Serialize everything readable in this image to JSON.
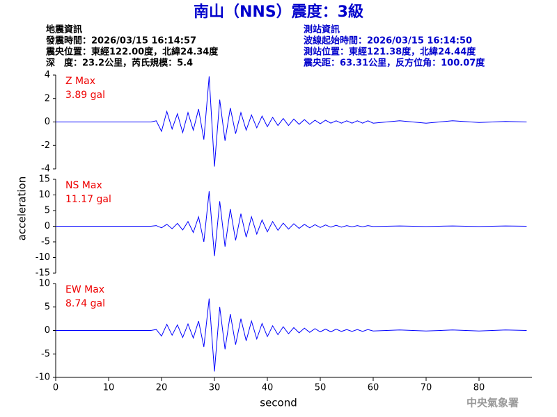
{
  "title": "南山（NNS）震度：3級",
  "event_info": [
    "地震資訊",
    "發震時間：2026/03/15 16:14:57",
    "震央位置：東經122.00度，北緯24.34度",
    "深　度：23.2公里，芮氏規模：5.4"
  ],
  "station_info": [
    "測站資訊",
    "波線起始時間：2026/03/15 16:14:50",
    "測站位置：東經121.38度，北緯24.44度",
    "震央距：63.31公里，反方位角：100.07度"
  ],
  "ylabel": "acceleration",
  "xlabel": "second",
  "footer": "中央氣象署",
  "chart_data": [
    {
      "type": "line",
      "annotation": [
        "Z Max",
        "3.89 gal"
      ],
      "color": "#0000ff",
      "x": [
        0,
        10,
        18,
        19,
        20,
        21,
        22,
        23,
        24,
        25,
        26,
        27,
        28,
        29,
        30,
        31,
        32,
        33,
        34,
        35,
        36,
        37,
        38,
        39,
        40,
        41,
        42,
        43,
        44,
        45,
        46,
        47,
        48,
        49,
        50,
        51,
        52,
        53,
        54,
        55,
        56,
        57,
        58,
        59,
        60,
        65,
        70,
        75,
        80,
        85,
        89
      ],
      "values": [
        0,
        0,
        0,
        0.1,
        -0.8,
        0.9,
        -0.6,
        0.7,
        -0.9,
        0.8,
        -0.7,
        1.1,
        -1.5,
        3.89,
        -3.8,
        1.9,
        -1.6,
        1.2,
        -1.0,
        0.8,
        -0.7,
        0.6,
        -0.5,
        0.5,
        -0.4,
        0.4,
        -0.3,
        0.3,
        -0.3,
        0.25,
        -0.2,
        0.2,
        -0.2,
        0.15,
        -0.15,
        0.15,
        -0.1,
        0.1,
        -0.1,
        0.1,
        -0.1,
        0.1,
        -0.1,
        0.1,
        -0.1,
        0.1,
        -0.1,
        0.1,
        -0.05,
        0.05,
        0
      ],
      "xlim": [
        0,
        90
      ],
      "ylim": [
        -4,
        4
      ],
      "yticks": [
        -4,
        -2,
        0,
        2,
        4
      ]
    },
    {
      "type": "line",
      "annotation": [
        "NS Max",
        "11.17 gal"
      ],
      "color": "#0000ff",
      "x": [
        0,
        10,
        18,
        19,
        20,
        21,
        22,
        23,
        24,
        25,
        26,
        27,
        28,
        29,
        30,
        31,
        32,
        33,
        34,
        35,
        36,
        37,
        38,
        39,
        40,
        41,
        42,
        43,
        44,
        45,
        46,
        47,
        48,
        49,
        50,
        51,
        52,
        53,
        54,
        55,
        56,
        57,
        58,
        59,
        60,
        65,
        70,
        75,
        80,
        85,
        89
      ],
      "values": [
        0,
        0,
        0,
        0.2,
        -0.5,
        0.6,
        -0.8,
        0.9,
        -1.2,
        1.5,
        -2.0,
        3.0,
        -5.0,
        11.17,
        -9.5,
        8.0,
        -6.5,
        5.5,
        -4.5,
        4.0,
        -3.5,
        3.0,
        -2.5,
        2.0,
        -1.8,
        1.5,
        -1.3,
        1.0,
        -0.9,
        0.8,
        -0.7,
        0.6,
        -0.5,
        0.5,
        -0.4,
        0.4,
        -0.3,
        0.3,
        -0.3,
        0.2,
        -0.2,
        0.2,
        -0.2,
        0.2,
        -0.1,
        0.1,
        -0.1,
        0.1,
        -0.1,
        0.1,
        0
      ],
      "xlim": [
        0,
        90
      ],
      "ylim": [
        -15,
        15
      ],
      "yticks": [
        -15,
        -10,
        -5,
        0,
        5,
        10,
        15
      ]
    },
    {
      "type": "line",
      "annotation": [
        "EW Max",
        "8.74 gal"
      ],
      "color": "#0000ff",
      "x": [
        0,
        10,
        18,
        19,
        20,
        21,
        22,
        23,
        24,
        25,
        26,
        27,
        28,
        29,
        30,
        31,
        32,
        33,
        34,
        35,
        36,
        37,
        38,
        39,
        40,
        41,
        42,
        43,
        44,
        45,
        46,
        47,
        48,
        49,
        50,
        51,
        52,
        53,
        54,
        55,
        56,
        57,
        58,
        59,
        60,
        65,
        70,
        75,
        80,
        85,
        89
      ],
      "values": [
        0,
        0,
        0,
        0.2,
        -1.2,
        1.3,
        -1.0,
        1.2,
        -1.5,
        1.4,
        -1.6,
        2.0,
        -3.5,
        6.8,
        -8.74,
        5.0,
        -4.0,
        3.5,
        -3.0,
        2.5,
        -2.2,
        2.0,
        -1.8,
        1.5,
        -1.3,
        1.0,
        -0.9,
        0.8,
        -0.7,
        0.6,
        -0.5,
        0.5,
        -0.4,
        0.4,
        -0.3,
        0.3,
        -0.3,
        0.3,
        -0.2,
        0.2,
        -0.2,
        0.2,
        -0.2,
        0.2,
        -0.1,
        0.1,
        -0.1,
        0.1,
        -0.1,
        0.1,
        0
      ],
      "xlim": [
        0,
        90
      ],
      "ylim": [
        -10,
        10
      ],
      "yticks": [
        -10,
        -5,
        0,
        5,
        10
      ],
      "xticks": [
        0,
        10,
        20,
        30,
        40,
        50,
        60,
        70,
        80
      ]
    }
  ]
}
